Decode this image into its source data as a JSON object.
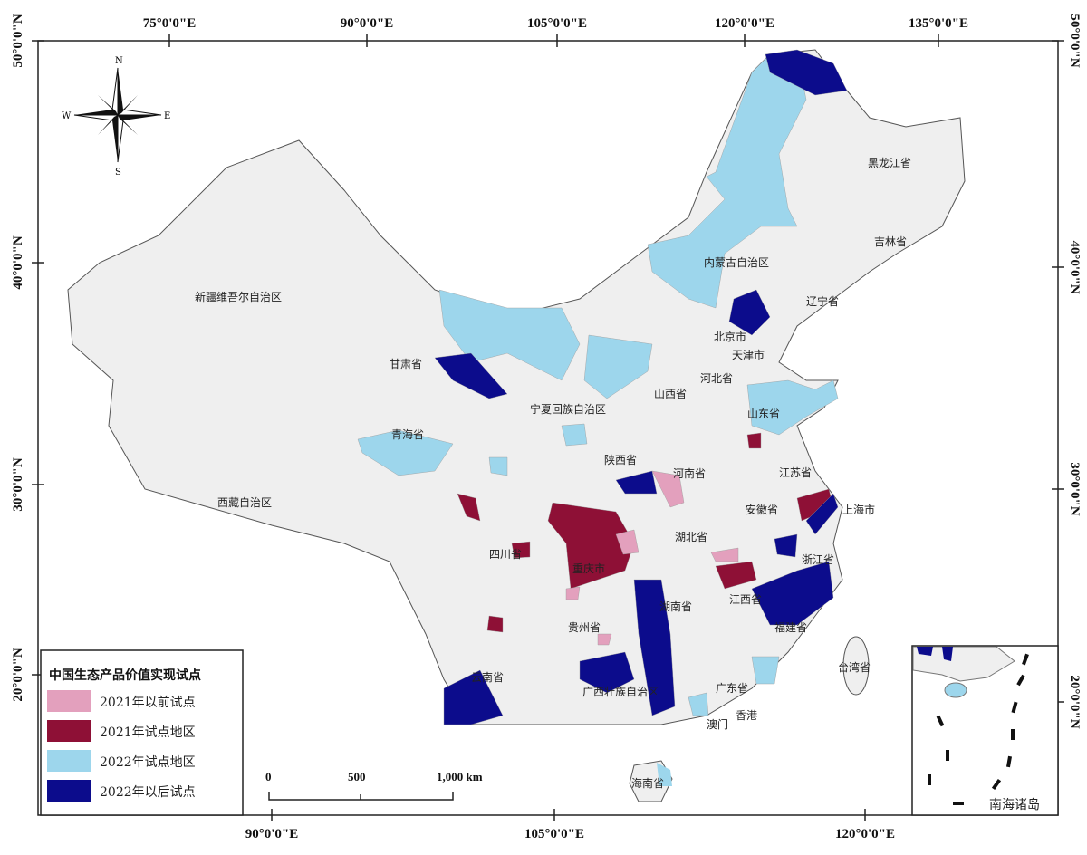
{
  "map": {
    "top_axis_labels": [
      "75°0'0\"E",
      "90°0'0\"E",
      "105°0'0\"E",
      "120°0'0\"E",
      "135°0'0\"E"
    ],
    "bottom_axis_labels": [
      "90°0'0\"E",
      "105°0'0\"E",
      "120°0'0\"E"
    ],
    "left_axis_labels": [
      "50°0'0\"N",
      "40°0'0\"N",
      "30°0'0\"N",
      "20°0'0\"N"
    ],
    "right_axis_labels": [
      "50°0'0\"N",
      "40°0'0\"N",
      "30°0'0\"N",
      "20°0'0\"N"
    ],
    "compass": {
      "n": "N",
      "s": "S",
      "e": "E",
      "w": "W"
    },
    "province_labels": [
      "新疆维吾尔自治区",
      "西藏自治区",
      "青海省",
      "甘肃省",
      "宁夏回族自治区",
      "内蒙古自治区",
      "黑龙江省",
      "吉林省",
      "辽宁省",
      "北京市",
      "天津市",
      "河北省",
      "山西省",
      "山东省",
      "陕西省",
      "河南省",
      "江苏省",
      "安徽省",
      "上海市",
      "湖北省",
      "四川省",
      "重庆市",
      "浙江省",
      "湖南省",
      "江西省",
      "贵州省",
      "福建省",
      "台湾省",
      "云南省",
      "广西壮族自治区",
      "广东省",
      "香港",
      "澳门",
      "海南省"
    ],
    "inset_label": "南海诸岛",
    "scale_bar": {
      "ticks": [
        "0",
        "500",
        "1,000 km"
      ]
    },
    "base_color": "#efefef",
    "border_color": "#555555"
  },
  "legend": {
    "title": "中国生态产品价值实现试点",
    "items": [
      {
        "label": "2021年以前试点",
        "color": "#e3a0bd"
      },
      {
        "label": "2021年试点地区",
        "color": "#8e1036"
      },
      {
        "label": "2022年试点地区",
        "color": "#9dd6ec"
      },
      {
        "label": "2022年以后试点",
        "color": "#0c0c8c"
      }
    ]
  }
}
